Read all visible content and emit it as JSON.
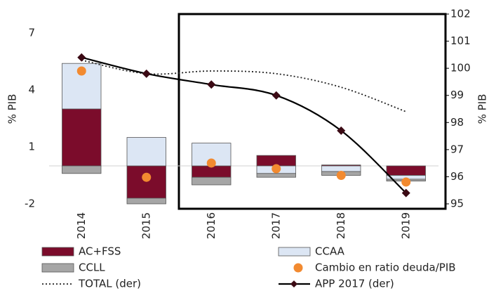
{
  "chart_data": {
    "type": "bar",
    "categories": [
      "2014",
      "2015",
      "2016",
      "2017",
      "2018",
      "2019"
    ],
    "ylabel": "% PIB",
    "y2label": "% PIB",
    "ylim": [
      -2,
      8
    ],
    "yticks": [
      -2,
      1,
      4,
      7
    ],
    "y2lim": [
      95,
      102
    ],
    "y2ticks": [
      95,
      96,
      97,
      98,
      99,
      100,
      101,
      102
    ],
    "series": [
      {
        "name": "AC+FSS",
        "type": "bar",
        "color": "#7b0c2b",
        "values": [
          3,
          -1.7,
          -0.6,
          0.55,
          0.05,
          -0.5
        ]
      },
      {
        "name": "CCAA",
        "type": "bar",
        "color": "#dce6f4",
        "values": [
          2.4,
          1.5,
          1.2,
          -0.4,
          -0.3,
          -0.2
        ]
      },
      {
        "name": "CCLL",
        "type": "bar",
        "color": "#a6a6a6",
        "values": [
          -0.4,
          -0.3,
          -0.4,
          -0.2,
          -0.2,
          -0.1
        ]
      },
      {
        "name": "Cambio en ratio deuda/PIB",
        "type": "scatter",
        "color": "#f28a30",
        "values": [
          5.0,
          -0.6,
          0.15,
          -0.15,
          -0.5,
          -0.85
        ]
      },
      {
        "name": "TOTAL (der)",
        "type": "line",
        "axis": "y2",
        "dash": true,
        "color": "#222222",
        "values": [
          100.3,
          99.8,
          99.9,
          99.8,
          99.3,
          98.4
        ]
      },
      {
        "name": "APP 2017 (der)",
        "type": "line",
        "axis": "y2",
        "dash": false,
        "color": "#000000",
        "marker_color": "#3b0a14",
        "values": [
          100.4,
          99.8,
          99.4,
          99.0,
          97.7,
          95.4
        ]
      }
    ]
  }
}
